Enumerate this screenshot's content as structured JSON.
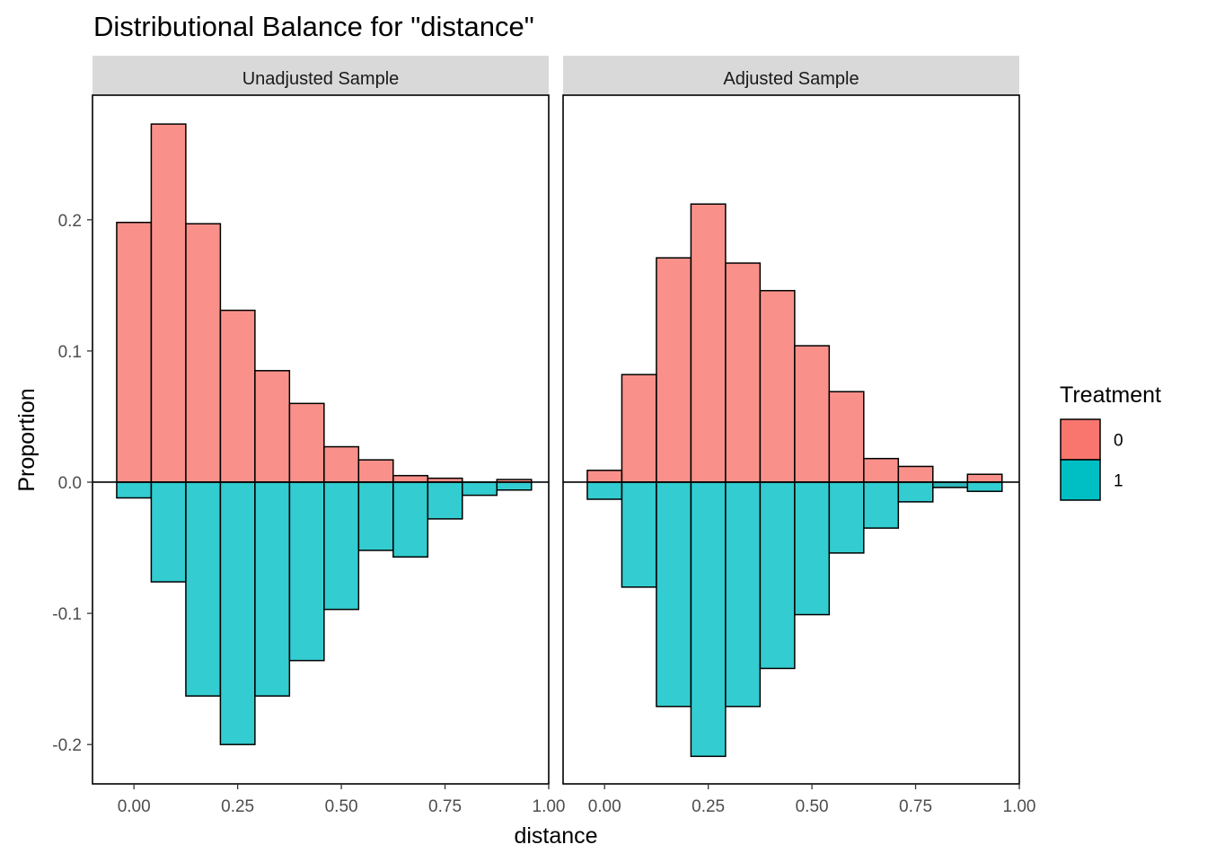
{
  "title": "Distributional Balance for \"distance\"",
  "chart_data": {
    "type": "bar",
    "title": "Distributional Balance for \"distance\"",
    "xlabel": "distance",
    "ylabel": "Proportion",
    "xlim": [
      -0.1,
      1.0
    ],
    "ylim": [
      -0.23,
      0.295
    ],
    "x_ticks": [
      0.0,
      0.25,
      0.5,
      0.75,
      1.0
    ],
    "x_tick_labels": [
      "0.00",
      "0.25",
      "0.50",
      "0.75",
      "1.00"
    ],
    "y_ticks": [
      0.2,
      0.1,
      0.0,
      -0.1,
      -0.2
    ],
    "y_tick_labels": [
      "0.2",
      "0.1",
      "0.0",
      "-0.1",
      "-0.2"
    ],
    "grid": false,
    "bin_width": 0.0833,
    "bin_centers": [
      0.0,
      0.0833,
      0.1667,
      0.25,
      0.3333,
      0.4167,
      0.5,
      0.5833,
      0.6667,
      0.75,
      0.8333,
      0.9167
    ],
    "legend": {
      "title": "Treatment",
      "position": "right",
      "entries": [
        {
          "label": "0",
          "color": "#F8766D"
        },
        {
          "label": "1",
          "color": "#00BFC4"
        }
      ]
    },
    "panels": [
      {
        "strip_label": "Unadjusted Sample",
        "series": [
          {
            "name": "0",
            "color": "#F8766D",
            "values": [
              0.198,
              0.273,
              0.197,
              0.131,
              0.085,
              0.06,
              0.027,
              0.017,
              0.005,
              0.003,
              0.0,
              0.002
            ]
          },
          {
            "name": "1",
            "color": "#00BFC4",
            "values": [
              -0.012,
              -0.076,
              -0.163,
              -0.2,
              -0.163,
              -0.136,
              -0.097,
              -0.052,
              -0.057,
              -0.028,
              -0.01,
              -0.006
            ]
          }
        ]
      },
      {
        "strip_label": "Adjusted Sample",
        "series": [
          {
            "name": "0",
            "color": "#F8766D",
            "values": [
              0.009,
              0.082,
              0.171,
              0.212,
              0.167,
              0.146,
              0.104,
              0.069,
              0.018,
              0.012,
              -0.004,
              0.006
            ]
          },
          {
            "name": "1",
            "color": "#00BFC4",
            "values": [
              -0.013,
              -0.08,
              -0.171,
              -0.209,
              -0.171,
              -0.142,
              -0.101,
              -0.054,
              -0.035,
              -0.015,
              -0.004,
              -0.007
            ]
          }
        ]
      }
    ]
  }
}
